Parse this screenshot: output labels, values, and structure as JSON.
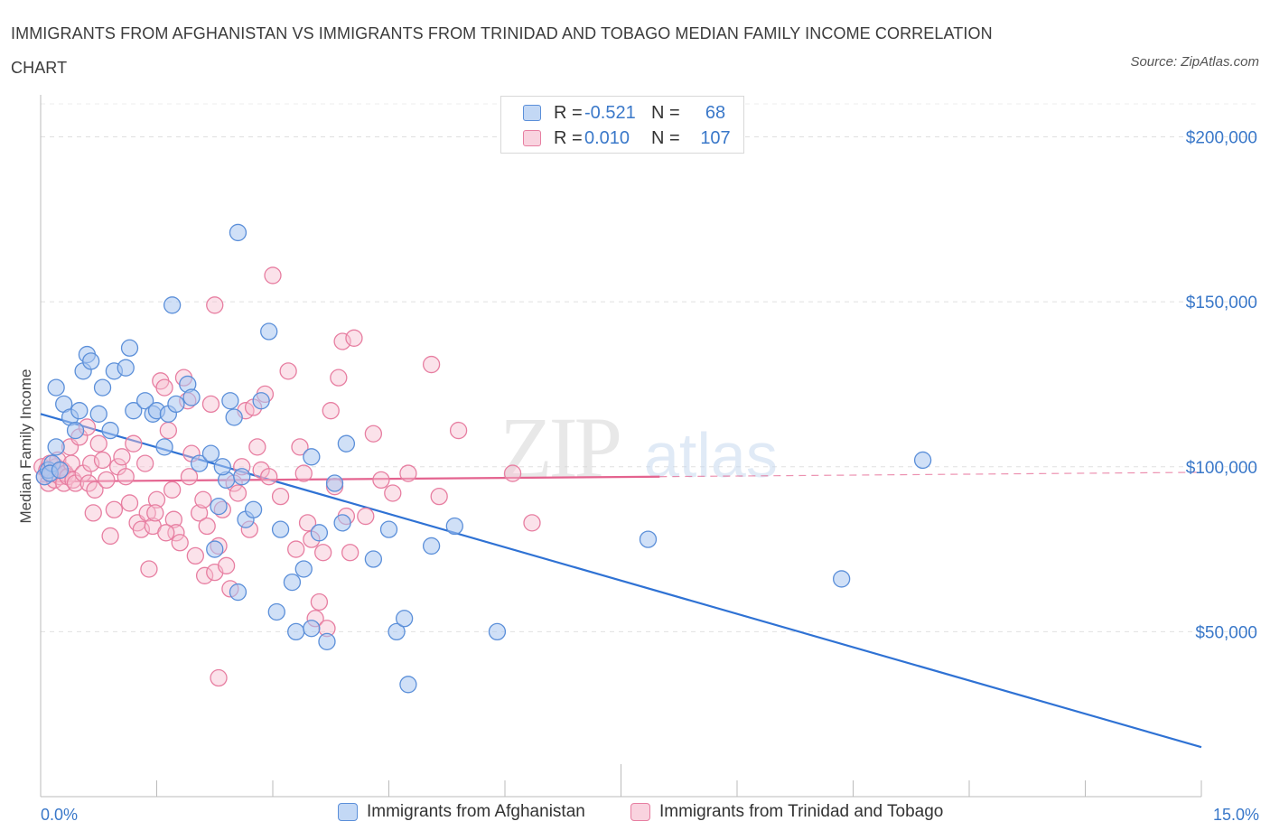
{
  "header": {
    "title": "IMMIGRANTS FROM AFGHANISTAN VS IMMIGRANTS FROM TRINIDAD AND TOBAGO MEDIAN FAMILY INCOME CORRELATION CHART",
    "source": "Source: ZipAtlas.com"
  },
  "legend": {
    "row1": {
      "r_label": "R =",
      "r_value": "-0.521",
      "n_label": "N =",
      "n_value": "68"
    },
    "row2": {
      "r_label": "R =",
      "r_value": "0.010",
      "n_label": "N =",
      "n_value": "107"
    }
  },
  "watermark": {
    "zip": "ZIP",
    "atlas": "atlas"
  },
  "colors": {
    "blue": "#5b8fd9",
    "blue_fill": "#a9c6f0",
    "blue_line": "#2f72d4",
    "pink": "#e77ea1",
    "pink_fill": "#f6bfd1",
    "pink_line": "#e4638f",
    "axis_text": "#3a78c9"
  },
  "chart_data": {
    "type": "scatter",
    "title": "IMMIGRANTS FROM AFGHANISTAN VS IMMIGRANTS FROM TRINIDAD AND TOBAGO MEDIAN FAMILY INCOME CORRELATION CHART",
    "ylabel": "Median Family Income",
    "xlabel": "",
    "xlim": [
      0,
      15
    ],
    "ylim": [
      0,
      210000
    ],
    "x_tick_labels": [
      "0.0%",
      "15.0%"
    ],
    "y_ticks": [
      50000,
      100000,
      150000,
      200000
    ],
    "y_tick_labels": [
      "$50,000",
      "$100,000",
      "$150,000",
      "$200,000"
    ],
    "grid": true,
    "legend_position": "bottom",
    "series": [
      {
        "name": "Immigrants from Afghanistan",
        "color": "#5b8fd9",
        "r": -0.521,
        "n": 68,
        "trend": {
          "x": [
            0,
            15
          ],
          "y": [
            116000,
            15000
          ]
        },
        "points": [
          [
            0.05,
            97000
          ],
          [
            0.1,
            99000
          ],
          [
            0.15,
            101000
          ],
          [
            0.2,
            106000
          ],
          [
            0.12,
            98000
          ],
          [
            0.25,
            99000
          ],
          [
            0.2,
            124000
          ],
          [
            0.3,
            119000
          ],
          [
            0.38,
            115000
          ],
          [
            0.45,
            111000
          ],
          [
            0.5,
            117000
          ],
          [
            0.55,
            129000
          ],
          [
            0.6,
            134000
          ],
          [
            0.65,
            132000
          ],
          [
            0.8,
            124000
          ],
          [
            0.75,
            116000
          ],
          [
            0.9,
            111000
          ],
          [
            0.95,
            129000
          ],
          [
            1.1,
            130000
          ],
          [
            1.15,
            136000
          ],
          [
            1.2,
            117000
          ],
          [
            1.35,
            120000
          ],
          [
            1.45,
            116000
          ],
          [
            1.5,
            117000
          ],
          [
            1.6,
            106000
          ],
          [
            1.65,
            116000
          ],
          [
            1.75,
            119000
          ],
          [
            1.9,
            125000
          ],
          [
            1.95,
            121000
          ],
          [
            1.7,
            149000
          ],
          [
            2.05,
            101000
          ],
          [
            2.2,
            104000
          ],
          [
            2.3,
            88000
          ],
          [
            2.25,
            75000
          ],
          [
            2.4,
            96000
          ],
          [
            2.5,
            115000
          ],
          [
            2.45,
            120000
          ],
          [
            2.35,
            100000
          ],
          [
            2.6,
            97000
          ],
          [
            2.65,
            84000
          ],
          [
            2.75,
            87000
          ],
          [
            2.85,
            120000
          ],
          [
            2.95,
            141000
          ],
          [
            2.55,
            62000
          ],
          [
            3.1,
            81000
          ],
          [
            3.05,
            56000
          ],
          [
            3.25,
            65000
          ],
          [
            3.3,
            50000
          ],
          [
            3.4,
            69000
          ],
          [
            3.5,
            51000
          ],
          [
            3.5,
            103000
          ],
          [
            3.6,
            80000
          ],
          [
            3.7,
            47000
          ],
          [
            3.8,
            95000
          ],
          [
            3.9,
            83000
          ],
          [
            3.95,
            107000
          ],
          [
            4.3,
            72000
          ],
          [
            4.5,
            81000
          ],
          [
            4.6,
            50000
          ],
          [
            4.7,
            54000
          ],
          [
            4.75,
            34000
          ],
          [
            5.05,
            76000
          ],
          [
            5.35,
            82000
          ],
          [
            5.9,
            50000
          ],
          [
            7.85,
            78000
          ],
          [
            10.35,
            66000
          ],
          [
            11.4,
            102000
          ],
          [
            2.55,
            171000
          ]
        ]
      },
      {
        "name": "Immigrants from Trinidad and Tobago",
        "color": "#e77ea1",
        "r": 0.01,
        "n": 107,
        "trend": {
          "x": [
            0,
            8
          ],
          "y": [
            95500,
            97000
          ],
          "dashed_to": 15
        },
        "points": [
          [
            0.02,
            100000
          ],
          [
            0.05,
            97000
          ],
          [
            0.08,
            99000
          ],
          [
            0.1,
            95000
          ],
          [
            0.12,
            101000
          ],
          [
            0.15,
            98000
          ],
          [
            0.18,
            96000
          ],
          [
            0.2,
            100000
          ],
          [
            0.22,
            102000
          ],
          [
            0.25,
            97000
          ],
          [
            0.28,
            99000
          ],
          [
            0.3,
            95000
          ],
          [
            0.32,
            98000
          ],
          [
            0.35,
            97000
          ],
          [
            0.38,
            106000
          ],
          [
            0.4,
            101000
          ],
          [
            0.42,
            96000
          ],
          [
            0.45,
            95000
          ],
          [
            0.5,
            109000
          ],
          [
            0.55,
            98000
          ],
          [
            0.6,
            112000
          ],
          [
            0.62,
            95000
          ],
          [
            0.65,
            101000
          ],
          [
            0.68,
            86000
          ],
          [
            0.7,
            93000
          ],
          [
            0.75,
            107000
          ],
          [
            0.8,
            102000
          ],
          [
            0.85,
            96000
          ],
          [
            0.9,
            79000
          ],
          [
            0.95,
            87000
          ],
          [
            1.0,
            100000
          ],
          [
            1.05,
            103000
          ],
          [
            1.1,
            97000
          ],
          [
            1.15,
            89000
          ],
          [
            1.2,
            107000
          ],
          [
            1.25,
            83000
          ],
          [
            1.3,
            81000
          ],
          [
            1.35,
            101000
          ],
          [
            1.38,
            86000
          ],
          [
            1.4,
            69000
          ],
          [
            1.45,
            82000
          ],
          [
            1.5,
            90000
          ],
          [
            1.55,
            126000
          ],
          [
            1.6,
            124000
          ],
          [
            1.65,
            111000
          ],
          [
            1.7,
            93000
          ],
          [
            1.72,
            84000
          ],
          [
            1.75,
            80000
          ],
          [
            1.8,
            77000
          ],
          [
            1.85,
            127000
          ],
          [
            1.9,
            120000
          ],
          [
            1.92,
            97000
          ],
          [
            1.95,
            104000
          ],
          [
            2.0,
            73000
          ],
          [
            2.05,
            86000
          ],
          [
            2.1,
            90000
          ],
          [
            2.12,
            67000
          ],
          [
            2.15,
            82000
          ],
          [
            2.2,
            119000
          ],
          [
            2.25,
            68000
          ],
          [
            2.3,
            76000
          ],
          [
            2.35,
            87000
          ],
          [
            2.4,
            70000
          ],
          [
            2.45,
            63000
          ],
          [
            2.5,
            95000
          ],
          [
            2.55,
            92000
          ],
          [
            2.6,
            100000
          ],
          [
            2.65,
            117000
          ],
          [
            2.7,
            81000
          ],
          [
            2.75,
            118000
          ],
          [
            2.8,
            106000
          ],
          [
            2.85,
            99000
          ],
          [
            2.9,
            122000
          ],
          [
            2.95,
            97000
          ],
          [
            3.0,
            158000
          ],
          [
            3.1,
            91000
          ],
          [
            3.2,
            129000
          ],
          [
            3.3,
            75000
          ],
          [
            3.35,
            106000
          ],
          [
            3.4,
            98000
          ],
          [
            3.45,
            83000
          ],
          [
            3.5,
            78000
          ],
          [
            3.55,
            54000
          ],
          [
            3.6,
            59000
          ],
          [
            3.65,
            74000
          ],
          [
            3.7,
            51000
          ],
          [
            3.75,
            117000
          ],
          [
            3.8,
            94000
          ],
          [
            3.85,
            127000
          ],
          [
            3.9,
            138000
          ],
          [
            3.95,
            85000
          ],
          [
            4.0,
            74000
          ],
          [
            4.05,
            139000
          ],
          [
            4.2,
            85000
          ],
          [
            4.3,
            110000
          ],
          [
            4.4,
            96000
          ],
          [
            4.55,
            92000
          ],
          [
            4.75,
            98000
          ],
          [
            5.05,
            131000
          ],
          [
            5.15,
            91000
          ],
          [
            5.4,
            111000
          ],
          [
            6.1,
            98000
          ],
          [
            6.35,
            83000
          ],
          [
            2.25,
            149000
          ],
          [
            2.3,
            36000
          ],
          [
            1.48,
            86000
          ],
          [
            1.62,
            80000
          ]
        ]
      }
    ]
  }
}
